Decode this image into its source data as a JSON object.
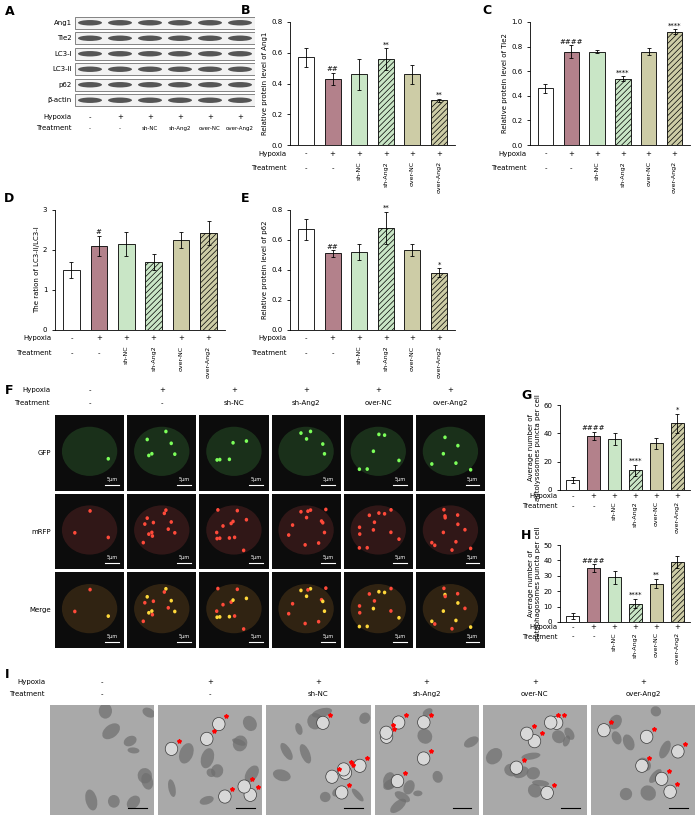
{
  "chart_data": [
    {
      "type": "bar",
      "title": "B",
      "ylabel": "Relative protein level of Ang1",
      "row_labels": [
        "Hypoxia",
        "Treatment"
      ],
      "hypoxia": [
        "-",
        "+",
        "+",
        "+",
        "+",
        "+"
      ],
      "categories": [
        "-",
        "-",
        "sh-NC",
        "sh-Ang2",
        "over-NC",
        "over-Ang2"
      ],
      "values": [
        0.57,
        0.43,
        0.46,
        0.56,
        0.46,
        0.29
      ],
      "errors": [
        0.06,
        0.04,
        0.1,
        0.07,
        0.06,
        0.01
      ],
      "annotations": [
        null,
        "##",
        null,
        "**",
        null,
        "**"
      ],
      "colors": [
        "#ffffff",
        "#b3818b",
        "#c9e6c6",
        "#c9e6c6",
        "#cdcca6",
        "#cdcca6"
      ],
      "ylim": [
        0,
        0.8
      ],
      "yticks": [
        {
          "value": 0,
          "label": "0.0"
        },
        0.2,
        0.4,
        0.6,
        0.8
      ]
    },
    {
      "type": "bar",
      "title": "C",
      "ylabel": "Relative protein level of Tie2",
      "row_labels": [
        "Hypoxia",
        "Treatment"
      ],
      "hypoxia": [
        "-",
        "+",
        "+",
        "+",
        "+",
        "+"
      ],
      "categories": [
        "-",
        "-",
        "sh-NC",
        "sh-Ang2",
        "over-NC",
        "over-Ang2"
      ],
      "values": [
        0.46,
        0.76,
        0.76,
        0.54,
        0.76,
        0.92
      ],
      "errors": [
        0.04,
        0.05,
        0.01,
        0.02,
        0.03,
        0.02
      ],
      "annotations": [
        null,
        "####",
        null,
        "****",
        null,
        "****"
      ],
      "colors": [
        "#ffffff",
        "#b3818b",
        "#c9e6c6",
        "#c9e6c6",
        "#cdcca6",
        "#cdcca6"
      ],
      "ylim": [
        0,
        1.0
      ],
      "yticks": [
        {
          "value": 0,
          "label": "0.0"
        },
        0.2,
        0.4,
        0.6,
        0.8,
        {
          "value": 1.0,
          "label": "1.0"
        }
      ]
    },
    {
      "type": "bar",
      "title": "D",
      "ylabel": "The ration of LC3-II/LC3-I",
      "row_labels": [
        "Hypoxia",
        "Treatment"
      ],
      "hypoxia": [
        "-",
        "+",
        "+",
        "+",
        "+",
        "+"
      ],
      "categories": [
        "-",
        "-",
        "sh-NC",
        "sh-Ang2",
        "over-NC",
        "over-Ang2"
      ],
      "values": [
        1.5,
        2.1,
        2.15,
        1.7,
        2.25,
        2.42
      ],
      "errors": [
        0.2,
        0.25,
        0.3,
        0.2,
        0.2,
        0.3
      ],
      "annotations": [
        null,
        "#",
        null,
        null,
        null,
        null
      ],
      "colors": [
        "#ffffff",
        "#b3818b",
        "#c9e6c6",
        "#c9e6c6",
        "#cdcca6",
        "#cdcca6"
      ],
      "ylim": [
        0,
        3
      ],
      "yticks": [
        0,
        1,
        2,
        3
      ]
    },
    {
      "type": "bar",
      "title": "E",
      "ylabel": "Relative protein level of p62",
      "row_labels": [
        "Hypoxia",
        "Treatment"
      ],
      "hypoxia": [
        "-",
        "+",
        "+",
        "+",
        "+",
        "+"
      ],
      "categories": [
        "-",
        "-",
        "sh-NC",
        "sh-Ang2",
        "over-NC",
        "over-Ang2"
      ],
      "values": [
        0.67,
        0.51,
        0.52,
        0.68,
        0.53,
        0.38
      ],
      "errors": [
        0.07,
        0.02,
        0.05,
        0.11,
        0.04,
        0.03
      ],
      "annotations": [
        null,
        "##",
        null,
        "**",
        null,
        "*"
      ],
      "colors": [
        "#ffffff",
        "#b3818b",
        "#c9e6c6",
        "#c9e6c6",
        "#cdcca6",
        "#cdcca6"
      ],
      "ylim": [
        0,
        0.8
      ],
      "yticks": [
        {
          "value": 0,
          "label": "0.0"
        },
        0.2,
        0.4,
        0.6,
        0.8
      ]
    },
    {
      "type": "bar",
      "title": "G",
      "ylabel": "Average number of\nautolysosomes puncta per cell",
      "row_labels": [
        "Hypoxia",
        "Treatment"
      ],
      "hypoxia": [
        "-",
        "+",
        "+",
        "+",
        "+",
        "+"
      ],
      "categories": [
        "-",
        "-",
        "sh-NC",
        "sh-Ang2",
        "over-NC",
        "over-Ang2"
      ],
      "values": [
        7,
        38,
        36,
        14,
        33,
        47
      ],
      "errors": [
        2,
        3,
        4,
        4,
        4,
        7
      ],
      "annotations": [
        null,
        "####",
        null,
        "****",
        null,
        "*"
      ],
      "colors": [
        "#ffffff",
        "#b3818b",
        "#c9e6c6",
        "#c9e6c6",
        "#cdcca6",
        "#cdcca6"
      ],
      "ylim": [
        0,
        60
      ],
      "yticks": [
        0,
        20,
        40,
        60
      ]
    },
    {
      "type": "bar",
      "title": "H",
      "ylabel": "Average number of\nautophagosomes puncta per cell",
      "row_labels": [
        "Hypoxia",
        "Treatment"
      ],
      "hypoxia": [
        "-",
        "+",
        "+",
        "+",
        "+",
        "+"
      ],
      "categories": [
        "-",
        "-",
        "sh-NC",
        "sh-Ang2",
        "over-NC",
        "over-Ang2"
      ],
      "values": [
        4,
        35,
        29,
        12,
        25,
        39
      ],
      "errors": [
        2,
        2.5,
        4,
        3,
        3,
        4
      ],
      "annotations": [
        null,
        "####",
        null,
        "****",
        "**",
        null
      ],
      "colors": [
        "#ffffff",
        "#b3818b",
        "#c9e6c6",
        "#c9e6c6",
        "#cdcca6",
        "#cdcca6"
      ],
      "ylim": [
        0,
        50
      ],
      "yticks": [
        0,
        10,
        20,
        30,
        40,
        50
      ]
    }
  ],
  "blot": {
    "title": "A",
    "proteins": [
      "Ang1",
      "Tie2",
      "LC3-I",
      "LC3-II",
      "p62",
      "β-actin"
    ],
    "row_labels": [
      "Hypoxia",
      "Treatment"
    ],
    "hypoxia": [
      "-",
      "+",
      "+",
      "+",
      "+",
      "+"
    ],
    "treatment": [
      "-",
      "-",
      "sh-NC",
      "sh-Ang2",
      "over-NC",
      "over-Ang2"
    ]
  },
  "fluorescence": {
    "title": "F",
    "channels": [
      "GFP",
      "mRFP",
      "Merge"
    ],
    "scale_bar": "5μm",
    "row_labels": [
      "Hypoxia",
      "Treatment"
    ],
    "hypoxia": [
      "-",
      "+",
      "+",
      "+",
      "+",
      "+"
    ],
    "treatment": [
      "-",
      "-",
      "sh-NC",
      "sh-Ang2",
      "over-NC",
      "over-Ang2"
    ]
  },
  "tem": {
    "title": "I",
    "row_labels": [
      "Hypoxia",
      "Treatment"
    ],
    "hypoxia": [
      "-",
      "+",
      "+",
      "+",
      "+",
      "+"
    ],
    "treatment": [
      "-",
      "-",
      "sh-NC",
      "sh-Ang2",
      "over-NC",
      "over-Ang2"
    ]
  }
}
